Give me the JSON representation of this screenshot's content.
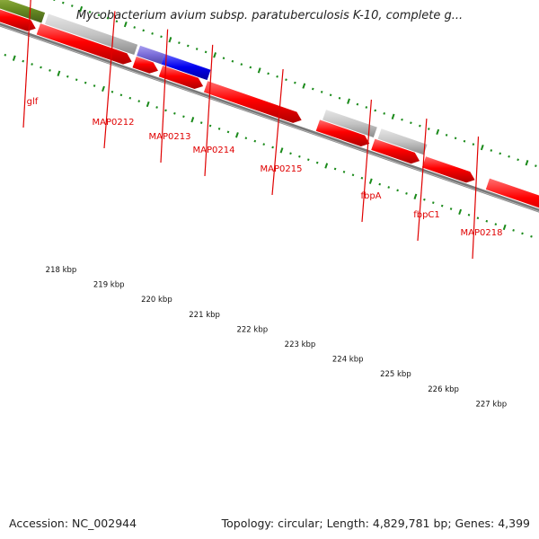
{
  "title": "Mycobacterium avium subsp. paratuberculosis K-10, complete g...",
  "footer": {
    "accession": "Accession: NC_002944",
    "stats": "Topology: circular; Length: 4,829,781 bp; Genes: 4,399"
  },
  "gene_labels": [
    "glf",
    "MAP0212",
    "MAP0213",
    "MAP0214",
    "MAP0215",
    "fbpA",
    "fbpC1",
    "MAP0218"
  ],
  "scale_labels": [
    "218 kbp",
    "219 kbp",
    "220 kbp",
    "221 kbp",
    "222 kbp",
    "223 kbp",
    "224 kbp",
    "225 kbp",
    "226 kbp",
    "227 kbp"
  ],
  "colors": {
    "cds": "#ff0000",
    "feature_grey": "#c4c4c4",
    "feature_green": "#6b8e23",
    "feature_blue": "#0000ee",
    "feature_purple": "#7a6cd8",
    "backbone": "#777777",
    "tick_green": "#1a8a1a",
    "label_red": "#e00000"
  }
}
